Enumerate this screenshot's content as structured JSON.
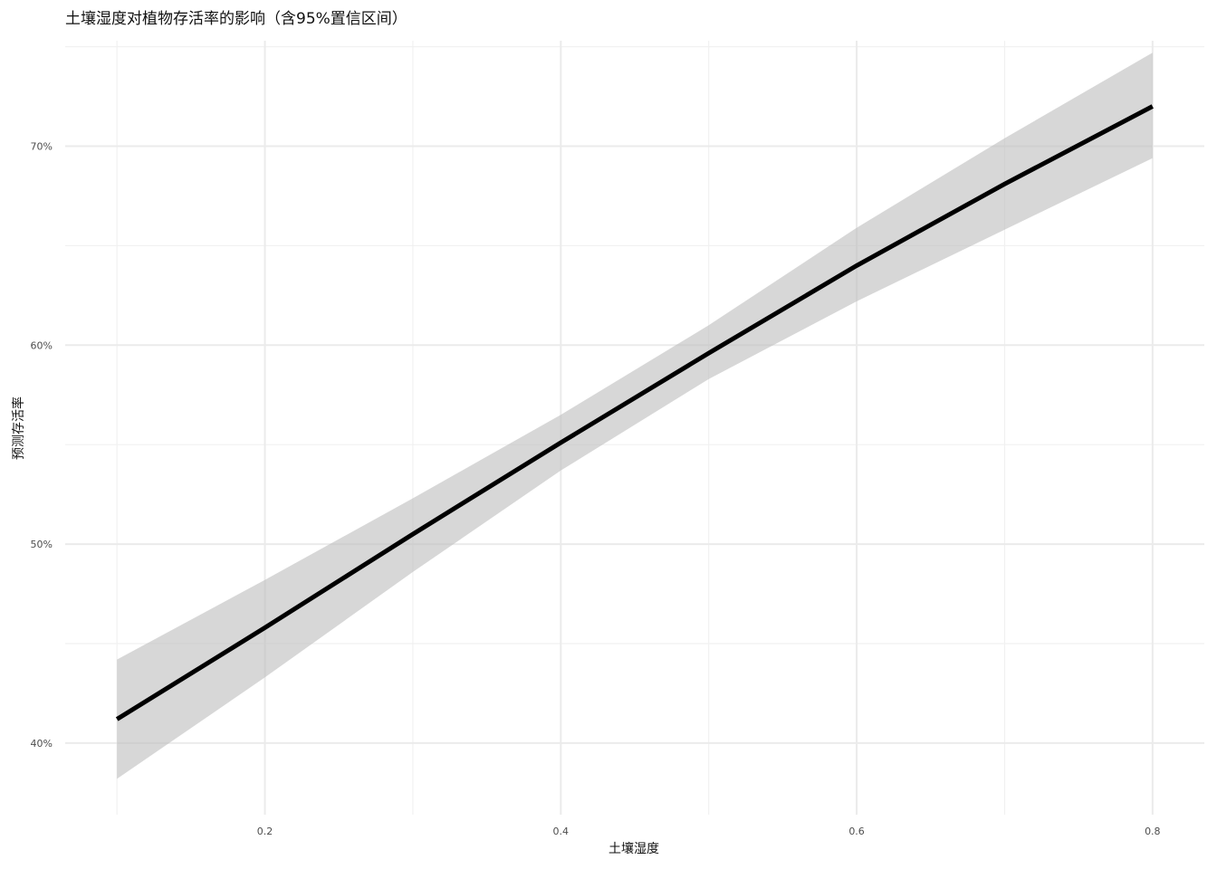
{
  "chart_data": {
    "type": "line",
    "title": "土壤湿度对植物存活率的影响（含95%置信区间）",
    "xlabel": "土壤湿度",
    "ylabel": "预测存活率",
    "xlim": [
      0.065,
      0.835
    ],
    "ylim": [
      0.364,
      0.753
    ],
    "x_ticks": [
      0.2,
      0.4,
      0.6,
      0.8
    ],
    "x_tick_labels": [
      "0.2",
      "0.4",
      "0.6",
      "0.8"
    ],
    "x_minor_ticks": [
      0.1,
      0.3,
      0.5,
      0.7
    ],
    "y_ticks": [
      0.4,
      0.5,
      0.6,
      0.7
    ],
    "y_tick_labels": [
      "40%",
      "50%",
      "60%",
      "70%"
    ],
    "y_minor_ticks": [
      0.45,
      0.55,
      0.65,
      0.75
    ],
    "grid": true,
    "legend": "none",
    "series": [
      {
        "x": [
          0.1,
          0.2,
          0.3,
          0.4,
          0.5,
          0.6,
          0.7,
          0.8
        ],
        "y": [
          0.412,
          0.458,
          0.505,
          0.551,
          0.596,
          0.64,
          0.681,
          0.72
        ],
        "ci_lower": [
          0.382,
          0.433,
          0.486,
          0.537,
          0.583,
          0.622,
          0.658,
          0.694
        ],
        "ci_upper": [
          0.442,
          0.482,
          0.523,
          0.565,
          0.61,
          0.659,
          0.704,
          0.747
        ],
        "line_color": "#000000",
        "band_color": "#bdbdbd"
      }
    ]
  }
}
